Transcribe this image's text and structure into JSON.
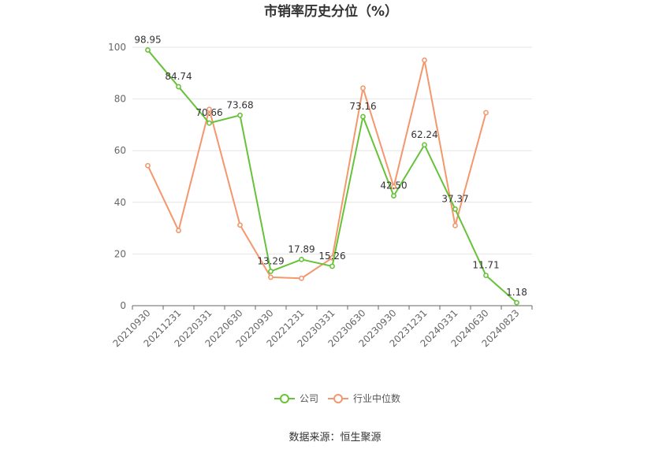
{
  "chart_data": {
    "type": "line",
    "title": "市销率历史分位（%）",
    "categories": [
      "20210930",
      "20211231",
      "20220331",
      "20220630",
      "20220930",
      "20221231",
      "20230331",
      "20230630",
      "20230930",
      "20231231",
      "20240331",
      "20240630",
      "20240823"
    ],
    "ylim": [
      0,
      100
    ],
    "yticks": [
      0,
      20,
      40,
      60,
      80,
      100
    ],
    "grid": true,
    "legend_position": "bottom",
    "series": [
      {
        "name": "公司",
        "color": "#67c23a",
        "values": [
          98.95,
          84.74,
          70.66,
          73.68,
          13.29,
          17.89,
          15.26,
          73.16,
          42.5,
          62.24,
          37.37,
          11.71,
          1.18
        ],
        "labels": [
          "98.95",
          "84.74",
          "70.66",
          "73.68",
          "13.29",
          "17.89",
          "15.26",
          "73.16",
          "42.50",
          "62.24",
          "37.37",
          "11.71",
          "1.18"
        ]
      },
      {
        "name": "行业中位数",
        "color": "#f4976c",
        "values": [
          54.2,
          29.1,
          76.0,
          31.2,
          11.0,
          10.6,
          18.5,
          84.2,
          46.0,
          95.0,
          31.0,
          74.7,
          null
        ]
      }
    ]
  },
  "source": "数据来源：恒生聚源"
}
